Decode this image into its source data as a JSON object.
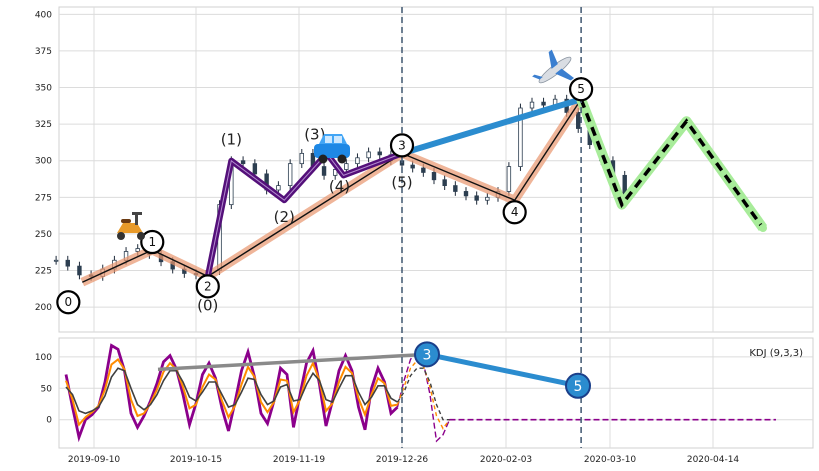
{
  "chart_data": [
    {
      "type": "candlestick",
      "title": "",
      "xlabel": "",
      "ylabel": "",
      "ylim": [
        183,
        405
      ],
      "y_ticks": [
        "200",
        "225",
        "250",
        "275",
        "300",
        "325",
        "350",
        "375",
        "400"
      ],
      "x_ticks": [
        "2019-09-10",
        "2019-10-15",
        "2019-11-19",
        "2019-12-26",
        "2020-02-03",
        "2020-03-10",
        "2020-04-14"
      ],
      "grid": true,
      "price_series": {
        "name": "",
        "x": [
          "2019-08-28",
          "2019-09-01",
          "2019-09-05",
          "2019-09-09",
          "2019-09-13",
          "2019-09-17",
          "2019-09-21",
          "2019-09-25",
          "2019-09-29",
          "2019-10-03",
          "2019-10-07",
          "2019-10-11",
          "2019-10-15",
          "2019-10-19",
          "2019-10-23",
          "2019-10-27",
          "2019-10-31",
          "2019-11-04",
          "2019-11-08",
          "2019-11-12",
          "2019-11-16",
          "2019-11-20",
          "2019-11-24",
          "2019-11-28",
          "2019-12-02",
          "2019-12-06",
          "2019-12-10",
          "2019-12-14",
          "2019-12-18",
          "2019-12-22",
          "2019-12-26",
          "2019-12-30",
          "2020-01-03",
          "2020-01-07",
          "2020-01-11",
          "2020-01-15",
          "2020-01-19",
          "2020-01-23",
          "2020-01-27",
          "2020-01-31",
          "2020-02-04",
          "2020-02-08",
          "2020-02-12",
          "2020-02-16",
          "2020-02-20",
          "2020-02-24",
          "2020-02-28",
          "2020-03-03",
          "2020-03-07",
          "2020-03-11",
          "2020-03-15"
        ],
        "close": [
          232,
          228,
          222,
          221,
          226,
          232,
          238,
          240,
          236,
          231,
          226,
          223,
          222,
          225,
          270,
          300,
          298,
          291,
          280,
          283,
          298,
          305,
          296,
          290,
          294,
          298,
          302,
          306,
          304,
          300,
          297,
          295,
          292,
          287,
          283,
          279,
          276,
          273,
          275,
          279,
          296,
          336,
          340,
          338,
          342,
          333,
          322,
          311,
          300,
          290,
          277
        ]
      },
      "waves": [
        {
          "name": "primary",
          "color": "#e8956e",
          "labels": [
            "0",
            "1",
            "2",
            "3",
            "4",
            "5"
          ],
          "points": [
            [
              "2019-09-06",
              217
            ],
            [
              "2019-09-30",
              239
            ],
            [
              "2019-10-19",
              221
            ],
            [
              "2019-12-26",
              305
            ],
            [
              "2020-02-06",
              273
            ],
            [
              "2020-02-29",
              342
            ]
          ]
        },
        {
          "name": "sub-wave",
          "color": "#54107a",
          "labels": [
            "(0)",
            "(1)",
            "(2)",
            "(3)",
            "(4)",
            "(5)"
          ],
          "points": [
            [
              "2019-10-19",
              221
            ],
            [
              "2019-10-27",
              300
            ],
            [
              "2019-11-14",
              273
            ],
            [
              "2019-11-29",
              305
            ],
            [
              "2019-12-05",
              290
            ],
            [
              "2019-12-26",
              305
            ]
          ]
        },
        {
          "name": "connector-3-5",
          "color": "#2b8ccf",
          "points": [
            [
              "2019-12-26",
              305
            ],
            [
              "2020-02-29",
              342
            ]
          ]
        },
        {
          "name": "retracement",
          "color": "#e6ef90",
          "points": [
            [
              "2020-02-29",
              342
            ],
            [
              "2020-03-14",
              271
            ]
          ]
        },
        {
          "name": "forecast",
          "color": "#000000",
          "points": [
            [
              "2020-02-29",
              342
            ],
            [
              "2020-03-14",
              270
            ],
            [
              "2020-04-05",
              327
            ],
            [
              "2020-05-01",
              254
            ]
          ]
        }
      ],
      "icons": [
        "scooter-icon",
        "car-icon",
        "airplane-icon"
      ]
    },
    {
      "type": "line",
      "title": "",
      "legend_text": "KDJ (9,3,3)",
      "ylim": [
        -45,
        130
      ],
      "y_ticks": [
        "0",
        "50",
        "100"
      ],
      "grid": true,
      "series": [
        {
          "name": "",
          "color": "#8b008b",
          "values": [
            72,
            20,
            -28,
            0,
            8,
            20,
            60,
            118,
            112,
            78,
            10,
            -12,
            6,
            30,
            58,
            92,
            102,
            80,
            40,
            -8,
            26,
            72,
            90,
            66,
            18,
            -18,
            28,
            78,
            108,
            68,
            10,
            -6,
            30,
            82,
            72,
            -12,
            40,
            90,
            110,
            56,
            -10,
            30,
            78,
            102,
            78,
            20,
            -16,
            50,
            82,
            60,
            10,
            20,
            62,
            96,
            110,
            90,
            40,
            -34,
            -24,
            0
          ]
        },
        {
          "name": "",
          "color": "#ff8c00",
          "values": [
            62,
            32,
            -8,
            4,
            12,
            22,
            48,
            88,
            96,
            80,
            32,
            6,
            10,
            26,
            48,
            76,
            90,
            80,
            52,
            18,
            24,
            52,
            72,
            64,
            30,
            4,
            22,
            56,
            84,
            68,
            28,
            12,
            28,
            64,
            62,
            12,
            32,
            70,
            90,
            62,
            14,
            26,
            60,
            84,
            74,
            34,
            8,
            40,
            66,
            58,
            22,
            24,
            52,
            82,
            94,
            86,
            52,
            6,
            -14,
            0
          ]
        },
        {
          "name": "",
          "color": "#404040",
          "values": [
            52,
            40,
            14,
            10,
            14,
            20,
            38,
            68,
            82,
            78,
            50,
            24,
            16,
            24,
            40,
            62,
            78,
            78,
            60,
            36,
            30,
            44,
            60,
            60,
            40,
            20,
            24,
            44,
            66,
            64,
            40,
            24,
            30,
            52,
            56,
            30,
            32,
            56,
            74,
            62,
            32,
            28,
            50,
            70,
            70,
            44,
            24,
            36,
            54,
            54,
            34,
            28,
            44,
            70,
            82,
            82,
            60,
            24,
            0,
            0
          ]
        },
        {
          "name": "",
          "color": "#888888",
          "values": []
        }
      ]
    }
  ],
  "annotations": {
    "wave_circle_labels": [
      "0",
      "1",
      "2",
      "3",
      "4",
      "5"
    ],
    "wave_sub_labels": [
      "(0)",
      "(1)",
      "(2)",
      "(3)",
      "(4)",
      "(5)"
    ],
    "kdj_markers": [
      "3",
      "5"
    ]
  }
}
